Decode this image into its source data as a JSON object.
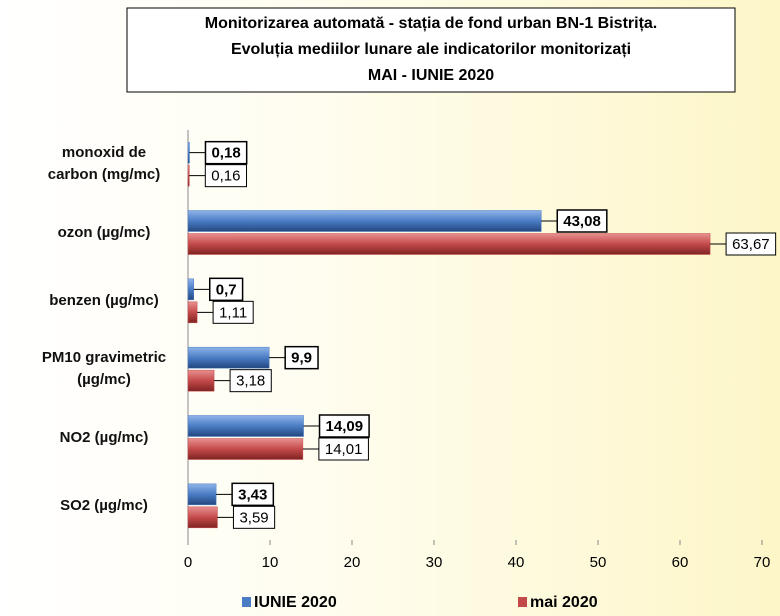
{
  "chart_data": {
    "type": "bar",
    "orientation": "horizontal",
    "title": [
      "Monitorizarea automată  - stația de fond urban BN-1 Bistrița.",
      "Evoluția mediilor lunare ale indicatorilor monitorizați",
      "MAI - IUNIE  2020"
    ],
    "categories": [
      "monoxid de carbon (mg/mc)",
      "ozon (µg/mc)",
      "benzen (µg/mc)",
      "PM10 gravimetric (µg/mc)",
      "NO2 (µg/mc)",
      "SO2 (µg/mc)"
    ],
    "series": [
      {
        "name": "IUNIE 2020",
        "color": "#4a7cc4",
        "values": [
          0.18,
          43.08,
          0.7,
          9.9,
          14.09,
          3.43
        ],
        "value_labels": [
          "0,18",
          "43,08",
          "0,7",
          "9,9",
          "14,09",
          "3,43"
        ]
      },
      {
        "name": "mai 2020",
        "color": "#c44a4a",
        "values": [
          0.16,
          63.67,
          1.11,
          3.18,
          14.01,
          3.59
        ],
        "value_labels": [
          "0,16",
          "63,67",
          "1,11",
          "3,18",
          "14,01",
          "3,59"
        ]
      }
    ],
    "xlim": [
      0,
      70
    ],
    "xticks": [
      0,
      10,
      20,
      30,
      40,
      50,
      60,
      70
    ],
    "legend": "bottom"
  }
}
